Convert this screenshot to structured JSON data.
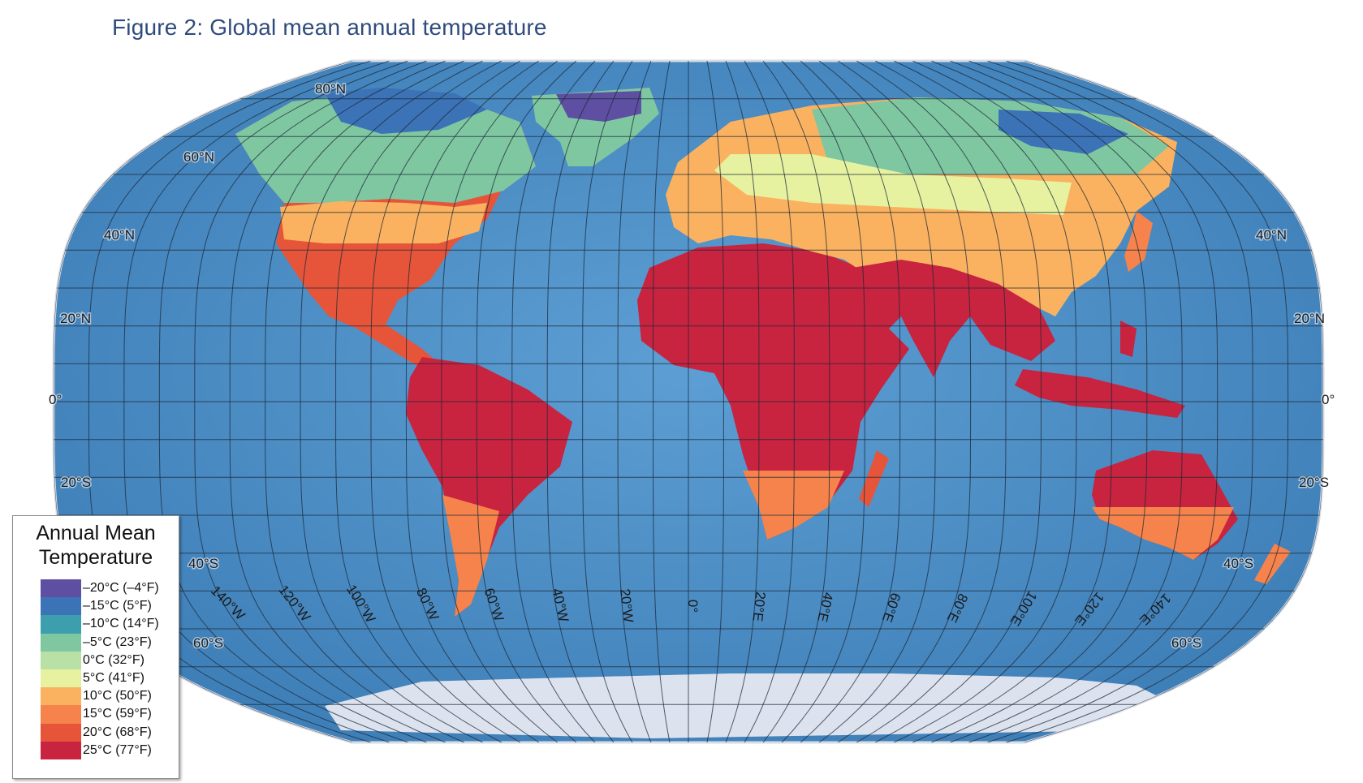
{
  "figure": {
    "title": "Figure 2: Global mean annual temperature"
  },
  "legend": {
    "title_line1": "Annual Mean",
    "title_line2": "Temperature",
    "items": [
      {
        "label": "–20°C (–4°F)",
        "color": "#5e4fa2"
      },
      {
        "label": "–15°C (5°F)",
        "color": "#3b73b6"
      },
      {
        "label": "–10°C (14°F)",
        "color": "#3d9fae"
      },
      {
        "label": "–5°C (23°F)",
        "color": "#7fc7a1"
      },
      {
        "label": "0°C (32°F)",
        "color": "#b9e1a6"
      },
      {
        "label": "5°C (41°F)",
        "color": "#e6f2a0"
      },
      {
        "label": "10°C (50°F)",
        "color": "#fbb260"
      },
      {
        "label": "15°C (59°F)",
        "color": "#f6834b"
      },
      {
        "label": "20°C (68°F)",
        "color": "#e6553a"
      },
      {
        "label": "25°C (77°F)",
        "color": "#c8233f"
      }
    ]
  },
  "map": {
    "ocean_color": "#4f8fc6",
    "ice_color": "#dde3ee",
    "lat_labels": {
      "n80": "80°N",
      "n60": "60°N",
      "n40": "40°N",
      "n20": "20°N",
      "eq": "0°",
      "s20": "20°S",
      "s40": "40°S",
      "s60": "60°S"
    },
    "lon_labels": [
      "140°W",
      "120°W",
      "100°W",
      "80°W",
      "60°W",
      "40°W",
      "20°W",
      "0°",
      "20°E",
      "40°E",
      "60°E",
      "80°E",
      "100°E",
      "120°E",
      "140°E"
    ]
  }
}
